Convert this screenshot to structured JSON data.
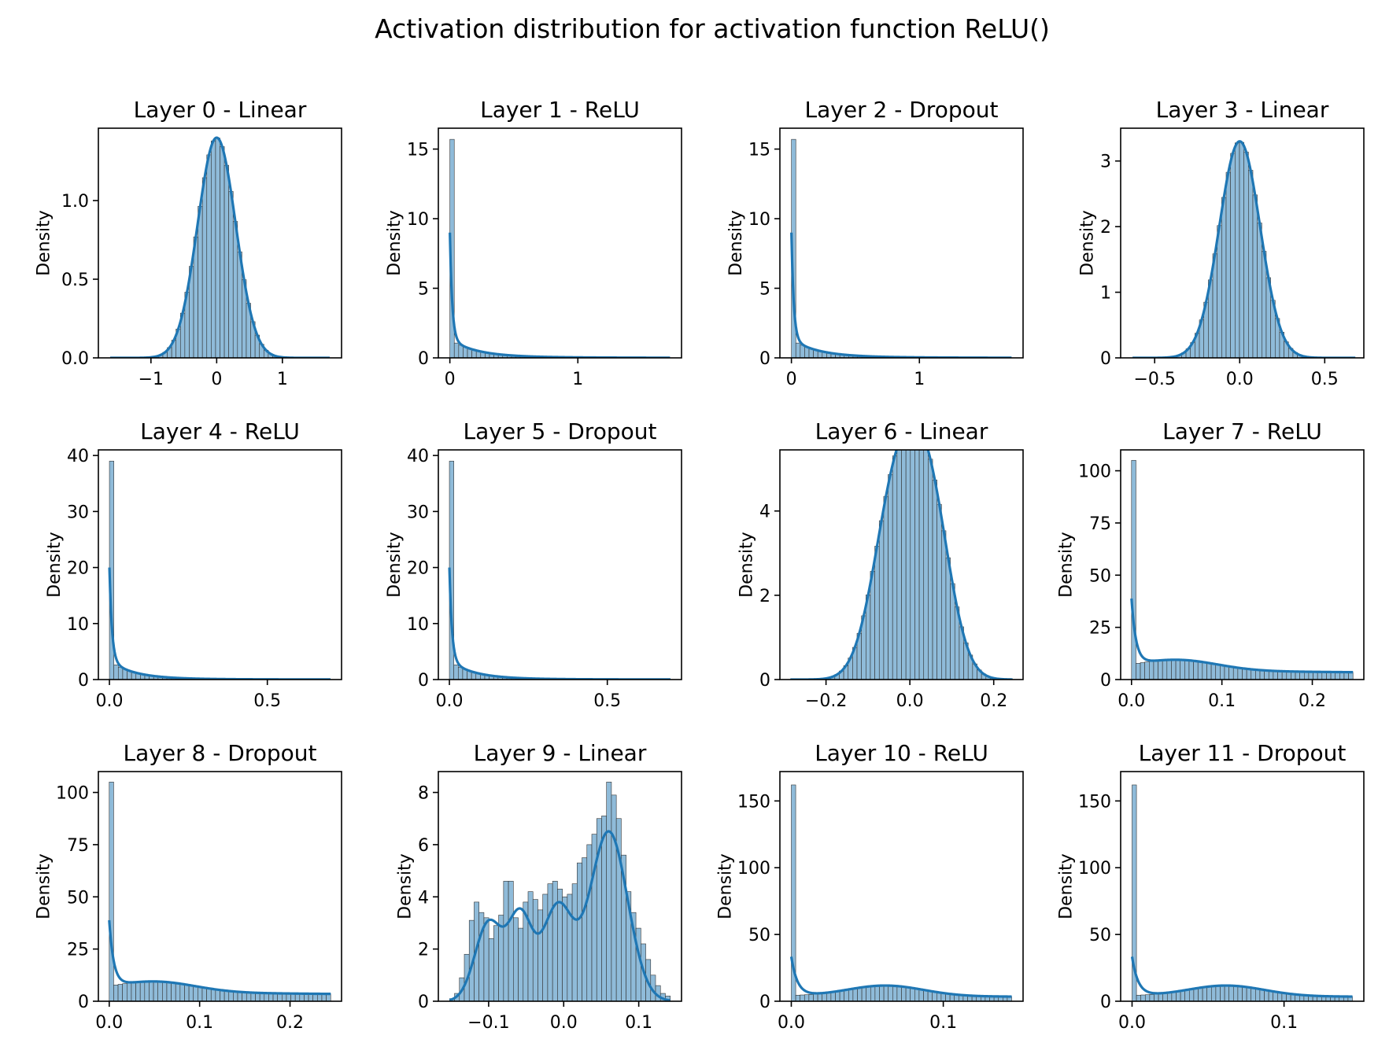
{
  "figure": {
    "title": "Activation distribution for activation function ReLU()",
    "colors": {
      "bar": "#1f77b4",
      "bar_fill": "#8fbbd9",
      "kde": "#1f77b4",
      "axes": "#000000"
    }
  },
  "chart_data": [
    {
      "type": "histogram",
      "title": "Layer 0 - Linear",
      "ylabel": "Density",
      "xlabel": "",
      "xlim": [
        -1.8,
        1.9
      ],
      "ylim": [
        0,
        1.46
      ],
      "xticks": [
        {
          "v": -1,
          "l": "−1"
        },
        {
          "v": 0,
          "l": "0"
        },
        {
          "v": 1,
          "l": "1"
        }
      ],
      "yticks": [
        {
          "v": 0,
          "l": "0.0"
        },
        {
          "v": 0.5,
          "l": "0.5"
        },
        {
          "v": 1.0,
          "l": "1.0"
        }
      ],
      "dist": {
        "kind": "normal",
        "mu": 0.0,
        "sigma": 0.29,
        "peak": 1.4,
        "range": [
          -1.62,
          1.72
        ],
        "bins": 50
      }
    },
    {
      "type": "histogram",
      "title": "Layer 1 - ReLU",
      "ylabel": "Density",
      "xlabel": "",
      "xlim": [
        -0.09,
        1.81
      ],
      "ylim": [
        0,
        16.5
      ],
      "xticks": [
        {
          "v": 0,
          "l": "0"
        },
        {
          "v": 1,
          "l": "1"
        }
      ],
      "yticks": [
        {
          "v": 0,
          "l": "0"
        },
        {
          "v": 5,
          "l": "5"
        },
        {
          "v": 10,
          "l": "10"
        },
        {
          "v": 15,
          "l": "15"
        }
      ],
      "dist": {
        "kind": "relu",
        "spike": 15.7,
        "h0": 1.35,
        "hmid": 0.15,
        "tau": 0.2,
        "kde0": 9.0,
        "kdeWidth": 0.018,
        "bumpMu": 0.0,
        "bumpH": 0,
        "bumpSigma": 1,
        "range": [
          0,
          1.72
        ],
        "bins": 50
      }
    },
    {
      "type": "histogram",
      "title": "Layer 2 - Dropout",
      "ylabel": "Density",
      "xlabel": "",
      "xlim": [
        -0.09,
        1.81
      ],
      "ylim": [
        0,
        16.5
      ],
      "xticks": [
        {
          "v": 0,
          "l": "0"
        },
        {
          "v": 1,
          "l": "1"
        }
      ],
      "yticks": [
        {
          "v": 0,
          "l": "0"
        },
        {
          "v": 5,
          "l": "5"
        },
        {
          "v": 10,
          "l": "10"
        },
        {
          "v": 15,
          "l": "15"
        }
      ],
      "dist": {
        "kind": "relu",
        "spike": 15.7,
        "h0": 1.35,
        "hmid": 0.15,
        "tau": 0.2,
        "kde0": 9.0,
        "kdeWidth": 0.018,
        "bumpMu": 0.0,
        "bumpH": 0,
        "bumpSigma": 1,
        "range": [
          0,
          1.72
        ],
        "bins": 50
      }
    },
    {
      "type": "histogram",
      "title": "Layer 3 - Linear",
      "ylabel": "Density",
      "xlabel": "",
      "xlim": [
        -0.7,
        0.73
      ],
      "ylim": [
        0,
        3.5
      ],
      "xticks": [
        {
          "v": -0.5,
          "l": "−0.5"
        },
        {
          "v": 0,
          "l": "0.0"
        },
        {
          "v": 0.5,
          "l": "0.5"
        }
      ],
      "yticks": [
        {
          "v": 0,
          "l": "0"
        },
        {
          "v": 1,
          "l": "1"
        },
        {
          "v": 2,
          "l": "2"
        },
        {
          "v": 3,
          "l": "3"
        }
      ],
      "dist": {
        "kind": "normal",
        "mu": 0.0,
        "sigma": 0.12,
        "peak": 3.3,
        "range": [
          -0.63,
          0.68
        ],
        "bins": 50
      }
    },
    {
      "type": "histogram",
      "title": "Layer 4 - ReLU",
      "ylabel": "Density",
      "xlabel": "",
      "xlim": [
        -0.035,
        0.735
      ],
      "ylim": [
        0,
        41
      ],
      "xticks": [
        {
          "v": 0,
          "l": "0.0"
        },
        {
          "v": 0.5,
          "l": "0.5"
        }
      ],
      "yticks": [
        {
          "v": 0,
          "l": "0"
        },
        {
          "v": 10,
          "l": "10"
        },
        {
          "v": 20,
          "l": "20"
        },
        {
          "v": 30,
          "l": "30"
        },
        {
          "v": 40,
          "l": "40"
        }
      ],
      "dist": {
        "kind": "relu",
        "spike": 39,
        "h0": 3.4,
        "hmid": 0.3,
        "tau": 0.075,
        "kde0": 20,
        "kdeWidth": 0.008,
        "bumpMu": 0.0,
        "bumpH": 0,
        "bumpSigma": 1,
        "range": [
          0,
          0.7
        ],
        "bins": 50
      }
    },
    {
      "type": "histogram",
      "title": "Layer 5 - Dropout",
      "ylabel": "Density",
      "xlabel": "",
      "xlim": [
        -0.035,
        0.735
      ],
      "ylim": [
        0,
        41
      ],
      "xticks": [
        {
          "v": 0,
          "l": "0.0"
        },
        {
          "v": 0.5,
          "l": "0.5"
        }
      ],
      "yticks": [
        {
          "v": 0,
          "l": "0"
        },
        {
          "v": 10,
          "l": "10"
        },
        {
          "v": 20,
          "l": "20"
        },
        {
          "v": 30,
          "l": "30"
        },
        {
          "v": 40,
          "l": "40"
        }
      ],
      "dist": {
        "kind": "relu",
        "spike": 39,
        "h0": 3.4,
        "hmid": 0.3,
        "tau": 0.075,
        "kde0": 20,
        "kdeWidth": 0.008,
        "bumpMu": 0.0,
        "bumpH": 0,
        "bumpSigma": 1,
        "range": [
          0,
          0.7
        ],
        "bins": 50
      }
    },
    {
      "type": "histogram",
      "title": "Layer 6 - Linear",
      "ylabel": "Density",
      "xlabel": "",
      "xlim": [
        -0.31,
        0.27
      ],
      "ylim": [
        0,
        5.45
      ],
      "xticks": [
        {
          "v": -0.2,
          "l": "−0.2"
        },
        {
          "v": 0,
          "l": "0.0"
        },
        {
          "v": 0.2,
          "l": "0.2"
        }
      ],
      "yticks": [
        {
          "v": 0,
          "l": "0"
        },
        {
          "v": 2,
          "l": "2"
        },
        {
          "v": 4,
          "l": "4"
        }
      ],
      "dist": {
        "kind": "bimodal",
        "components": [
          {
            "mu": -0.035,
            "sigma": 0.052,
            "h": 4.2
          },
          {
            "mu": 0.045,
            "sigma": 0.05,
            "h": 4.1
          }
        ],
        "range": [
          -0.285,
          0.245
        ],
        "bins": 50
      }
    },
    {
      "type": "histogram",
      "title": "Layer 7 - ReLU",
      "ylabel": "Density",
      "xlabel": "",
      "xlim": [
        -0.012,
        0.257
      ],
      "ylim": [
        0,
        110
      ],
      "xticks": [
        {
          "v": 0,
          "l": "0.0"
        },
        {
          "v": 0.1,
          "l": "0.1"
        },
        {
          "v": 0.2,
          "l": "0.2"
        }
      ],
      "yticks": [
        {
          "v": 0,
          "l": "0"
        },
        {
          "v": 25,
          "l": "25"
        },
        {
          "v": 50,
          "l": "50"
        },
        {
          "v": 75,
          "l": "75"
        },
        {
          "v": 100,
          "l": "100"
        }
      ],
      "dist": {
        "kind": "relu",
        "spike": 105,
        "h0": 4.5,
        "hmid": 0,
        "tau": 1,
        "kde0": 36,
        "kdeWidth": 0.005,
        "bumpMu": 0.05,
        "bumpH": 5.2,
        "bumpSigma": 0.045,
        "range": [
          0,
          0.245
        ],
        "bins": 50
      }
    },
    {
      "type": "histogram",
      "title": "Layer 8 - Dropout",
      "ylabel": "Density",
      "xlabel": "",
      "xlim": [
        -0.012,
        0.257
      ],
      "ylim": [
        0,
        110
      ],
      "xticks": [
        {
          "v": 0,
          "l": "0.0"
        },
        {
          "v": 0.1,
          "l": "0.1"
        },
        {
          "v": 0.2,
          "l": "0.2"
        }
      ],
      "yticks": [
        {
          "v": 0,
          "l": "0"
        },
        {
          "v": 25,
          "l": "25"
        },
        {
          "v": 50,
          "l": "50"
        },
        {
          "v": 75,
          "l": "75"
        },
        {
          "v": 100,
          "l": "100"
        }
      ],
      "dist": {
        "kind": "relu",
        "spike": 105,
        "h0": 4.5,
        "hmid": 0,
        "tau": 1,
        "kde0": 36,
        "kdeWidth": 0.005,
        "bumpMu": 0.05,
        "bumpH": 5.2,
        "bumpSigma": 0.045,
        "range": [
          0,
          0.245
        ],
        "bins": 50
      }
    },
    {
      "type": "histogram",
      "title": "Layer 9 - Linear",
      "ylabel": "Density",
      "xlabel": "",
      "xlim": [
        -0.167,
        0.157
      ],
      "ylim": [
        0,
        8.8
      ],
      "xticks": [
        {
          "v": -0.1,
          "l": "−0.1"
        },
        {
          "v": 0,
          "l": "0.0"
        },
        {
          "v": 0.1,
          "l": "0.1"
        }
      ],
      "yticks": [
        {
          "v": 0,
          "l": "0"
        },
        {
          "v": 2,
          "l": "2"
        },
        {
          "v": 4,
          "l": "4"
        },
        {
          "v": 6,
          "l": "6"
        },
        {
          "v": 8,
          "l": "8"
        }
      ],
      "dist": {
        "kind": "multimodal",
        "bars": [
          0.1,
          0.3,
          0.9,
          1.8,
          3.1,
          3.8,
          3.4,
          3.2,
          2.4,
          2.9,
          3.3,
          4.6,
          4.6,
          3.2,
          2.8,
          3.8,
          4.2,
          3.9,
          3.5,
          4.1,
          4.5,
          4.6,
          4.3,
          4.0,
          4.1,
          4.5,
          5.3,
          5.5,
          6.0,
          6.4,
          7.0,
          7.1,
          8.4,
          7.9,
          7.0,
          5.6,
          4.2,
          3.4,
          2.8,
          2.2,
          1.6,
          1.0,
          0.6,
          0.3,
          0.2
        ],
        "kdeComponents": [
          {
            "mu": -0.1,
            "sigma": 0.018,
            "h": 3.0
          },
          {
            "mu": -0.058,
            "sigma": 0.016,
            "h": 3.2
          },
          {
            "mu": -0.008,
            "sigma": 0.02,
            "h": 3.6
          },
          {
            "mu": 0.06,
            "sigma": 0.025,
            "h": 6.5
          }
        ],
        "range": [
          -0.152,
          0.142
        ]
      }
    },
    {
      "type": "histogram",
      "title": "Layer 10 - ReLU",
      "ylabel": "Density",
      "xlabel": "",
      "xlim": [
        -0.0075,
        0.1525
      ],
      "ylim": [
        0,
        172
      ],
      "xticks": [
        {
          "v": 0,
          "l": "0.0"
        },
        {
          "v": 0.1,
          "l": "0.1"
        }
      ],
      "yticks": [
        {
          "v": 0,
          "l": "0"
        },
        {
          "v": 50,
          "l": "50"
        },
        {
          "v": 100,
          "l": "100"
        },
        {
          "v": 150,
          "l": "150"
        }
      ],
      "dist": {
        "kind": "relu",
        "spike": 162,
        "h0": 4.0,
        "hmid": 0,
        "tau": 1,
        "kde0": 33,
        "kdeWidth": 0.004,
        "bumpMu": 0.062,
        "bumpH": 8,
        "bumpSigma": 0.025,
        "range": [
          0,
          0.145
        ],
        "bins": 50
      }
    },
    {
      "type": "histogram",
      "title": "Layer 11 - Dropout",
      "ylabel": "Density",
      "xlabel": "",
      "xlim": [
        -0.0075,
        0.1525
      ],
      "ylim": [
        0,
        172
      ],
      "xticks": [
        {
          "v": 0,
          "l": "0.0"
        },
        {
          "v": 0.1,
          "l": "0.1"
        }
      ],
      "yticks": [
        {
          "v": 0,
          "l": "0"
        },
        {
          "v": 50,
          "l": "50"
        },
        {
          "v": 100,
          "l": "100"
        },
        {
          "v": 150,
          "l": "150"
        }
      ],
      "dist": {
        "kind": "relu",
        "spike": 162,
        "h0": 4.0,
        "hmid": 0,
        "tau": 1,
        "kde0": 33,
        "kdeWidth": 0.004,
        "bumpMu": 0.062,
        "bumpH": 8,
        "bumpSigma": 0.025,
        "range": [
          0,
          0.145
        ],
        "bins": 50
      }
    }
  ]
}
